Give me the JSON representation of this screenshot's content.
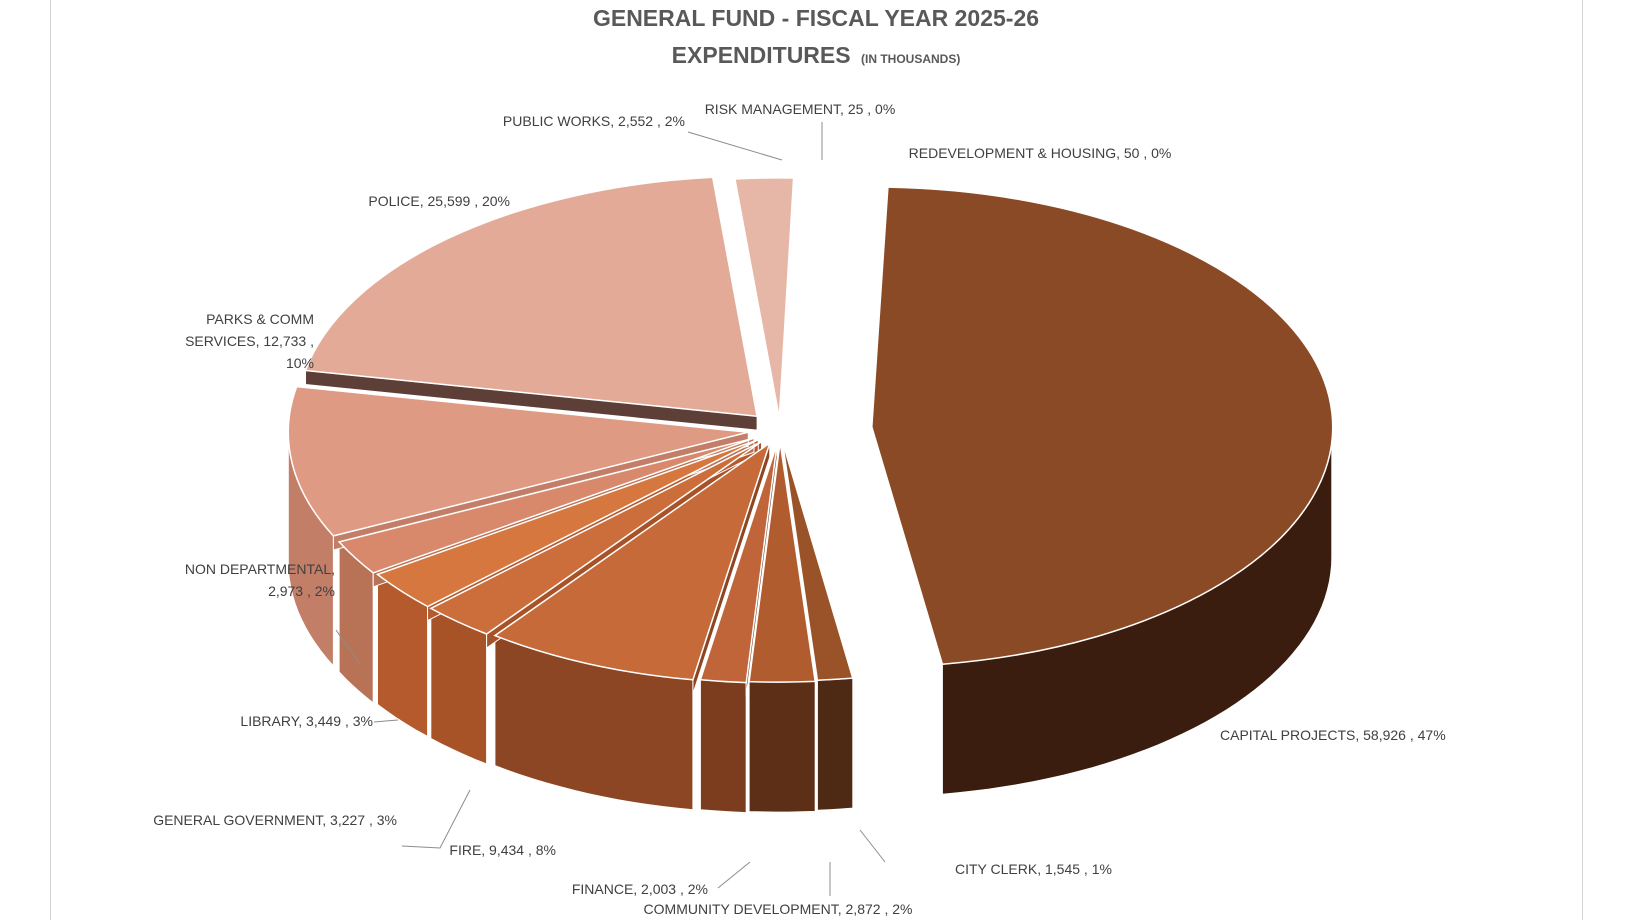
{
  "chart_data": {
    "type": "pie",
    "title": "GENERAL FUND - FISCAL YEAR 2025-26",
    "subtitle": "EXPENDITURES",
    "subtitle_note": "(IN THOUSANDS)",
    "slices": [
      {
        "label": "CAPITAL PROJECTS",
        "value": "58,926",
        "percent": "47%",
        "color": "#8b4a26",
        "side_color": "#3a1d0e",
        "text_lines": [
          "CAPITAL PROJECTS, 58,926 , 47%"
        ]
      },
      {
        "label": "CITY CLERK",
        "value": "1,545",
        "percent": "1%",
        "color": "#9a5228",
        "side_color": "#4e2913",
        "text_lines": [
          "CITY CLERK, 1,545 , 1%"
        ]
      },
      {
        "label": "COMMUNITY DEVELOPMENT",
        "value": "2,872",
        "percent": "2%",
        "color": "#b05c2e",
        "side_color": "#5c2f16",
        "text_lines": [
          "COMMUNITY DEVELOPMENT, 2,872 , 2%"
        ]
      },
      {
        "label": "FINANCE",
        "value": "2,003",
        "percent": "2%",
        "color": "#c0653a",
        "side_color": "#7b3d1e",
        "text_lines": [
          "FINANCE, 2,003 , 2%"
        ]
      },
      {
        "label": "FIRE",
        "value": "9,434",
        "percent": "8%",
        "color": "#c66a3a",
        "side_color": "#8c4623",
        "text_lines": [
          "FIRE, 9,434 , 8%"
        ]
      },
      {
        "label": "GENERAL GOVERNMENT",
        "value": "3,227",
        "percent": "3%",
        "color": "#cc6d3c",
        "side_color": "#a85228",
        "text_lines": [
          "GENERAL GOVERNMENT, 3,227 , 3%"
        ]
      },
      {
        "label": "LIBRARY",
        "value": "3,449",
        "percent": "3%",
        "color": "#d5773f",
        "side_color": "#b45a2c",
        "text_lines": [
          "LIBRARY, 3,449 , 3%"
        ]
      },
      {
        "label": "NON DEPARTMENTAL",
        "value": "2,973",
        "percent": "2%",
        "color": "#d8896b",
        "side_color": "#b87256",
        "text_lines": [
          "NON DEPARTMENTAL,",
          "2,973 , 2%"
        ]
      },
      {
        "label": "PARKS & COMM SERVICES",
        "value": "12,733",
        "percent": "10%",
        "color": "#df9a84",
        "side_color": "#c27e67",
        "text_lines": [
          "PARKS & COMM",
          "SERVICES, 12,733 ,",
          "10%"
        ]
      },
      {
        "label": "POLICE",
        "value": "25,599",
        "percent": "20%",
        "color": "#e3ab97",
        "side_color": "#5e3f38",
        "text_lines": [
          "POLICE, 25,599 , 20%"
        ]
      },
      {
        "label": "PUBLIC WORKS",
        "value": "2,552",
        "percent": "2%",
        "color": "#e6b6a6",
        "side_color": "#6b4a42",
        "text_lines": [
          "PUBLIC WORKS, 2,552 , 2%"
        ]
      },
      {
        "label": "RISK MANAGEMENT",
        "value": "25",
        "percent": "0%",
        "color": "#ecc4b8",
        "side_color": "#7a5a52",
        "text_lines": [
          "RISK MANAGEMENT,  25 , 0%"
        ]
      },
      {
        "label": "REDEVELOPMENT & HOUSING",
        "value": "50",
        "percent": "0%",
        "color": "#efd0c6",
        "side_color": "#846258",
        "text_lines": [
          "REDEVELOPMENT & HOUSING, 50 , 0%"
        ]
      }
    ],
    "legend": "none",
    "style": "3d-exploded-pie"
  }
}
